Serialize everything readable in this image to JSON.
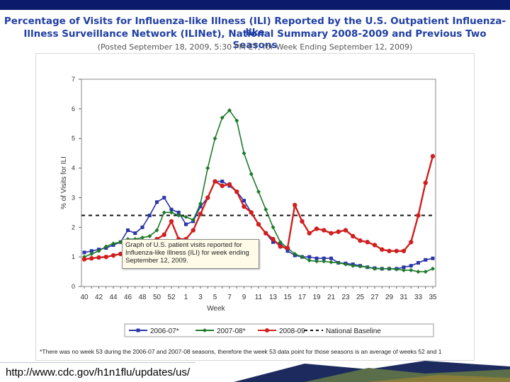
{
  "header": {
    "title_line1": "Percentage of Visits for Influenza-like Illness (ILI) Reported by the U.S. Outpatient Influenza-like",
    "title_line2": "Illness Surveillance Network (ILINet), National Summary 2008-2009 and Previous Two Seasons",
    "subtitle": "(Posted September 18, 2009, 5:30 PM ET, for Week Ending September 12, 2009)"
  },
  "tooltip": {
    "text": "Graph of U.S. patient visits reported for Influenza-like Illness (ILI) for week ending September 12, 2009."
  },
  "footnote": "*There was no week 53 during the 2006-07 and 2007-08 seasons, therefore the week 53 data point for those seasons is an average of weeks 52 and 1",
  "url": "http://www.cdc.gov/h1n1flu/updates/us/",
  "chart_data": {
    "type": "line",
    "ylabel": "% of Visits for ILI",
    "xlabel": "Week",
    "ylim": [
      0,
      7
    ],
    "yticks": [
      0,
      1,
      2,
      3,
      4,
      5,
      6,
      7
    ],
    "weeks": [
      40,
      41,
      42,
      43,
      44,
      45,
      46,
      47,
      48,
      49,
      50,
      51,
      52,
      53,
      1,
      2,
      3,
      4,
      5,
      6,
      7,
      8,
      9,
      10,
      11,
      12,
      13,
      14,
      15,
      16,
      17,
      18,
      19,
      20,
      21,
      22,
      23,
      24,
      25,
      26,
      27,
      28,
      29,
      30,
      31,
      32,
      33,
      34,
      35
    ],
    "xtick_labels": [
      "40",
      "42",
      "44",
      "46",
      "48",
      "50",
      "52",
      "1",
      "3",
      "5",
      "7",
      "9",
      "11",
      "13",
      "15",
      "17",
      "19",
      "21",
      "23",
      "25",
      "27",
      "29",
      "31",
      "33",
      "35"
    ],
    "baseline": {
      "name": "National Baseline",
      "value": 2.4
    },
    "series": [
      {
        "name": "2006-07*",
        "color": "#2b35a8",
        "marker": "square",
        "values": [
          1.15,
          1.2,
          1.25,
          1.3,
          1.4,
          1.5,
          1.9,
          1.8,
          2.0,
          2.4,
          2.85,
          3.0,
          2.6,
          2.5,
          2.1,
          2.2,
          2.7,
          3.0,
          3.55,
          3.55,
          3.4,
          3.2,
          2.9,
          2.5,
          2.1,
          1.8,
          1.5,
          1.45,
          1.2,
          1.05,
          1.0,
          1.0,
          0.95,
          0.95,
          0.95,
          0.8,
          0.78,
          0.75,
          0.7,
          0.65,
          0.62,
          0.6,
          0.6,
          0.6,
          0.65,
          0.7,
          0.8,
          0.9,
          0.95
        ]
      },
      {
        "name": "2007-08*",
        "color": "#1e7a2a",
        "marker": "diamond",
        "values": [
          1.0,
          1.1,
          1.2,
          1.35,
          1.45,
          1.5,
          1.6,
          1.6,
          1.65,
          1.7,
          1.9,
          2.5,
          2.5,
          2.4,
          2.35,
          2.25,
          2.8,
          4.0,
          5.0,
          5.7,
          5.95,
          5.6,
          4.5,
          3.8,
          3.2,
          2.6,
          2.0,
          1.5,
          1.3,
          1.1,
          1.0,
          0.88,
          0.85,
          0.85,
          0.82,
          0.8,
          0.75,
          0.7,
          0.68,
          0.65,
          0.6,
          0.6,
          0.6,
          0.58,
          0.55,
          0.55,
          0.5,
          0.5,
          0.6
        ]
      },
      {
        "name": "2008-09",
        "color": "#d01f1f",
        "marker": "circle",
        "values": [
          0.92,
          0.95,
          0.98,
          1.0,
          1.05,
          1.1,
          1.15,
          1.2,
          1.3,
          1.4,
          1.6,
          1.75,
          2.2,
          1.6,
          1.6,
          1.9,
          2.45,
          3.0,
          3.55,
          3.4,
          3.45,
          3.2,
          2.7,
          2.5,
          2.1,
          1.8,
          1.6,
          1.35,
          1.3,
          2.75,
          2.2,
          1.8,
          1.95,
          1.9,
          1.8,
          1.85,
          1.9,
          1.7,
          1.55,
          1.5,
          1.4,
          1.25,
          1.2,
          1.2,
          1.2,
          1.5,
          2.4,
          3.5,
          4.4
        ]
      }
    ]
  }
}
